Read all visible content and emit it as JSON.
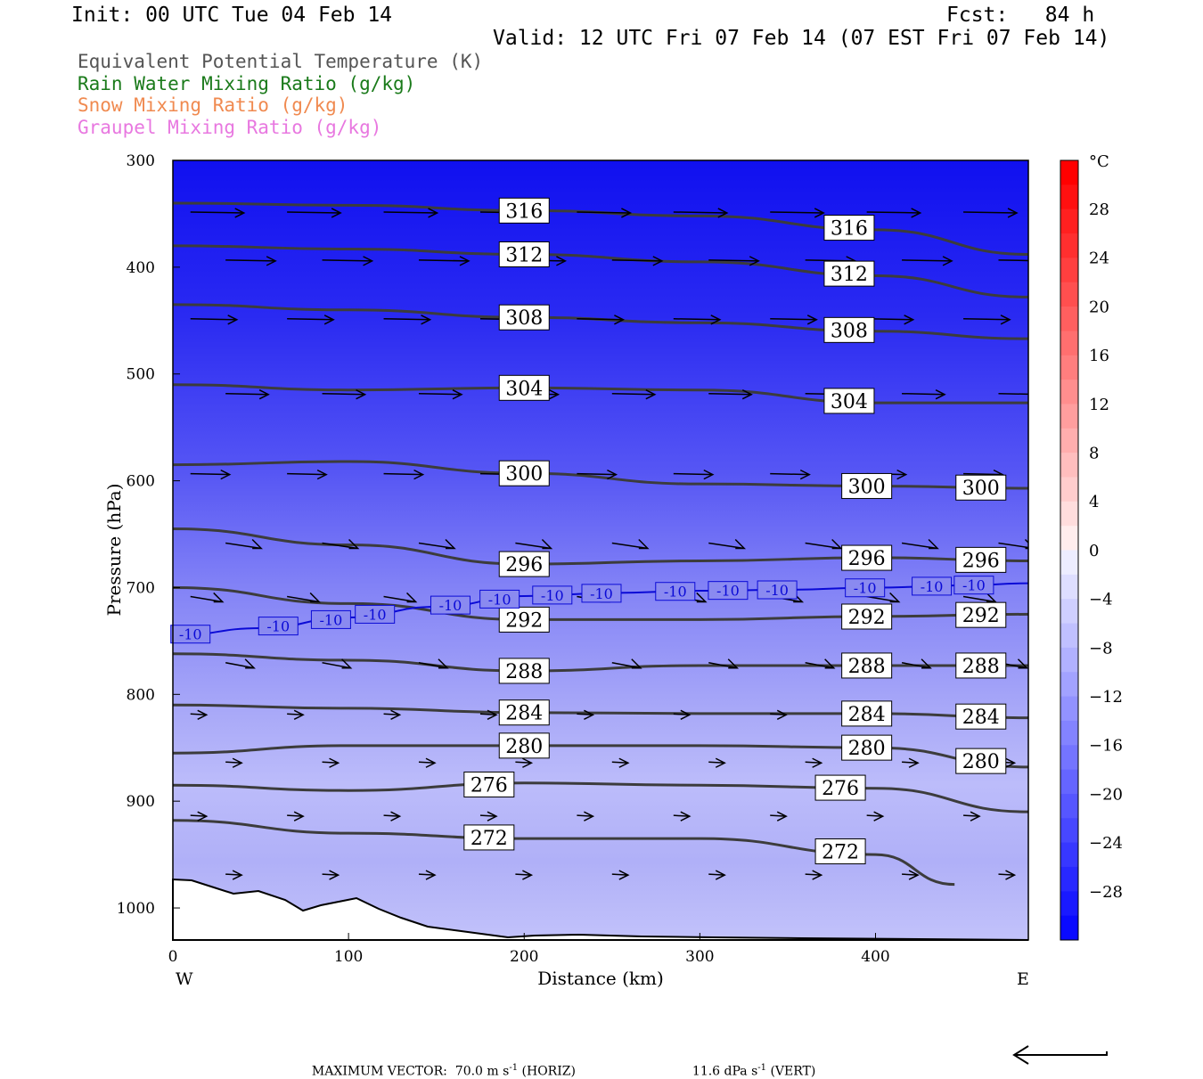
{
  "header": {
    "init": "Init: 00 UTC Tue 04 Feb 14",
    "fcst": "Fcst:   84 h",
    "valid": "Valid: 12 UTC Fri 07 Feb 14 (07 EST Fri 07 Feb 14)"
  },
  "legend": [
    {
      "label": "Equivalent Potential Temperature (K)",
      "color": "#555555"
    },
    {
      "label": "Rain Water Mixing Ratio (g/kg)",
      "color": "#1a7a1a"
    },
    {
      "label": "Snow Mixing Ratio (g/kg)",
      "color": "#f08a50"
    },
    {
      "label": "Graupel Mixing Ratio (g/kg)",
      "color": "#e878e0"
    }
  ],
  "colorbar": {
    "unit": "°C",
    "tick_labels": [
      "28",
      "24",
      "20",
      "16",
      "12",
      "8",
      "4",
      "0",
      "-4",
      "-8",
      "-12",
      "-16",
      "-20",
      "-24",
      "-28"
    ]
  },
  "chart_data": {
    "type": "line",
    "subtype": "vertical cross-section",
    "xlabel": "Distance (km)",
    "ylabel": "Pressure (hPa)",
    "x_ticks": [
      "0",
      "100",
      "200",
      "300",
      "400"
    ],
    "y_ticks": [
      "300",
      "400",
      "500",
      "600",
      "700",
      "800",
      "900",
      "1000"
    ],
    "xlim": [
      0,
      487
    ],
    "ylim": [
      300,
      1030
    ],
    "y_inverted": true,
    "left_end_label": "W",
    "right_end_label": "E",
    "theta_e_contours": [
      {
        "value": 316,
        "label": "316",
        "x": [
          0,
          100,
          200,
          300,
          400,
          487
        ],
        "p": [
          340,
          342,
          347,
          352,
          365,
          388
        ]
      },
      {
        "value": 312,
        "label": "312",
        "x": [
          0,
          100,
          200,
          300,
          400,
          487
        ],
        "p": [
          380,
          383,
          388,
          395,
          408,
          428
        ]
      },
      {
        "value": 308,
        "label": "308",
        "x": [
          0,
          100,
          200,
          300,
          400,
          487
        ],
        "p": [
          435,
          440,
          447,
          452,
          460,
          467
        ]
      },
      {
        "value": 304,
        "label": "304",
        "x": [
          0,
          100,
          200,
          300,
          400,
          487
        ],
        "p": [
          510,
          515,
          513,
          515,
          527,
          527
        ]
      },
      {
        "value": 300,
        "label": "300",
        "x": [
          0,
          100,
          200,
          300,
          400,
          487
        ],
        "p": [
          585,
          582,
          593,
          603,
          605,
          607
        ]
      },
      {
        "value": 296,
        "label": "296",
        "x": [
          0,
          100,
          200,
          300,
          400,
          487
        ],
        "p": [
          645,
          660,
          678,
          675,
          672,
          675
        ]
      },
      {
        "value": 292,
        "label": "292",
        "x": [
          0,
          100,
          200,
          300,
          400,
          487
        ],
        "p": [
          700,
          715,
          730,
          730,
          727,
          725
        ]
      },
      {
        "value": 288,
        "label": "288",
        "x": [
          0,
          100,
          200,
          300,
          400,
          487
        ],
        "p": [
          762,
          768,
          778,
          773,
          773,
          773
        ]
      },
      {
        "value": 284,
        "label": "284",
        "x": [
          0,
          100,
          200,
          300,
          400,
          487
        ],
        "p": [
          810,
          813,
          817,
          818,
          818,
          822
        ]
      },
      {
        "value": 280,
        "label": "280",
        "x": [
          0,
          100,
          200,
          300,
          400,
          487
        ],
        "p": [
          855,
          848,
          848,
          848,
          850,
          868
        ]
      },
      {
        "value": 276,
        "label": "276",
        "x": [
          0,
          100,
          200,
          300,
          400,
          487
        ],
        "p": [
          885,
          890,
          883,
          885,
          888,
          910
        ]
      },
      {
        "value": 272,
        "label": "272",
        "x": [
          0,
          100,
          200,
          300,
          400,
          445
        ],
        "p": [
          918,
          930,
          935,
          935,
          950,
          978
        ]
      }
    ],
    "isotherm_contours": [
      {
        "value": -10,
        "label": "-10",
        "color": "#0a0ad6",
        "x": [
          0,
          50,
          100,
          150,
          200,
          250,
          300,
          350,
          400,
          450,
          487
        ],
        "p": [
          745,
          738,
          728,
          718,
          708,
          705,
          703,
          702,
          700,
          698,
          696
        ]
      }
    ],
    "temperature_shading_range_C": [
      -32,
      32
    ],
    "max_vector": {
      "horizontal": "70.0 m s",
      "vertical": "11.6 dPa s"
    }
  },
  "footer": {
    "prefix": "MAXIMUM VECTOR:  70.0 m s",
    "horiz": " (HORIZ)",
    "vert_prefix": "11.6 dPa s",
    "vert": " (VERT)",
    "exp": "-1"
  }
}
